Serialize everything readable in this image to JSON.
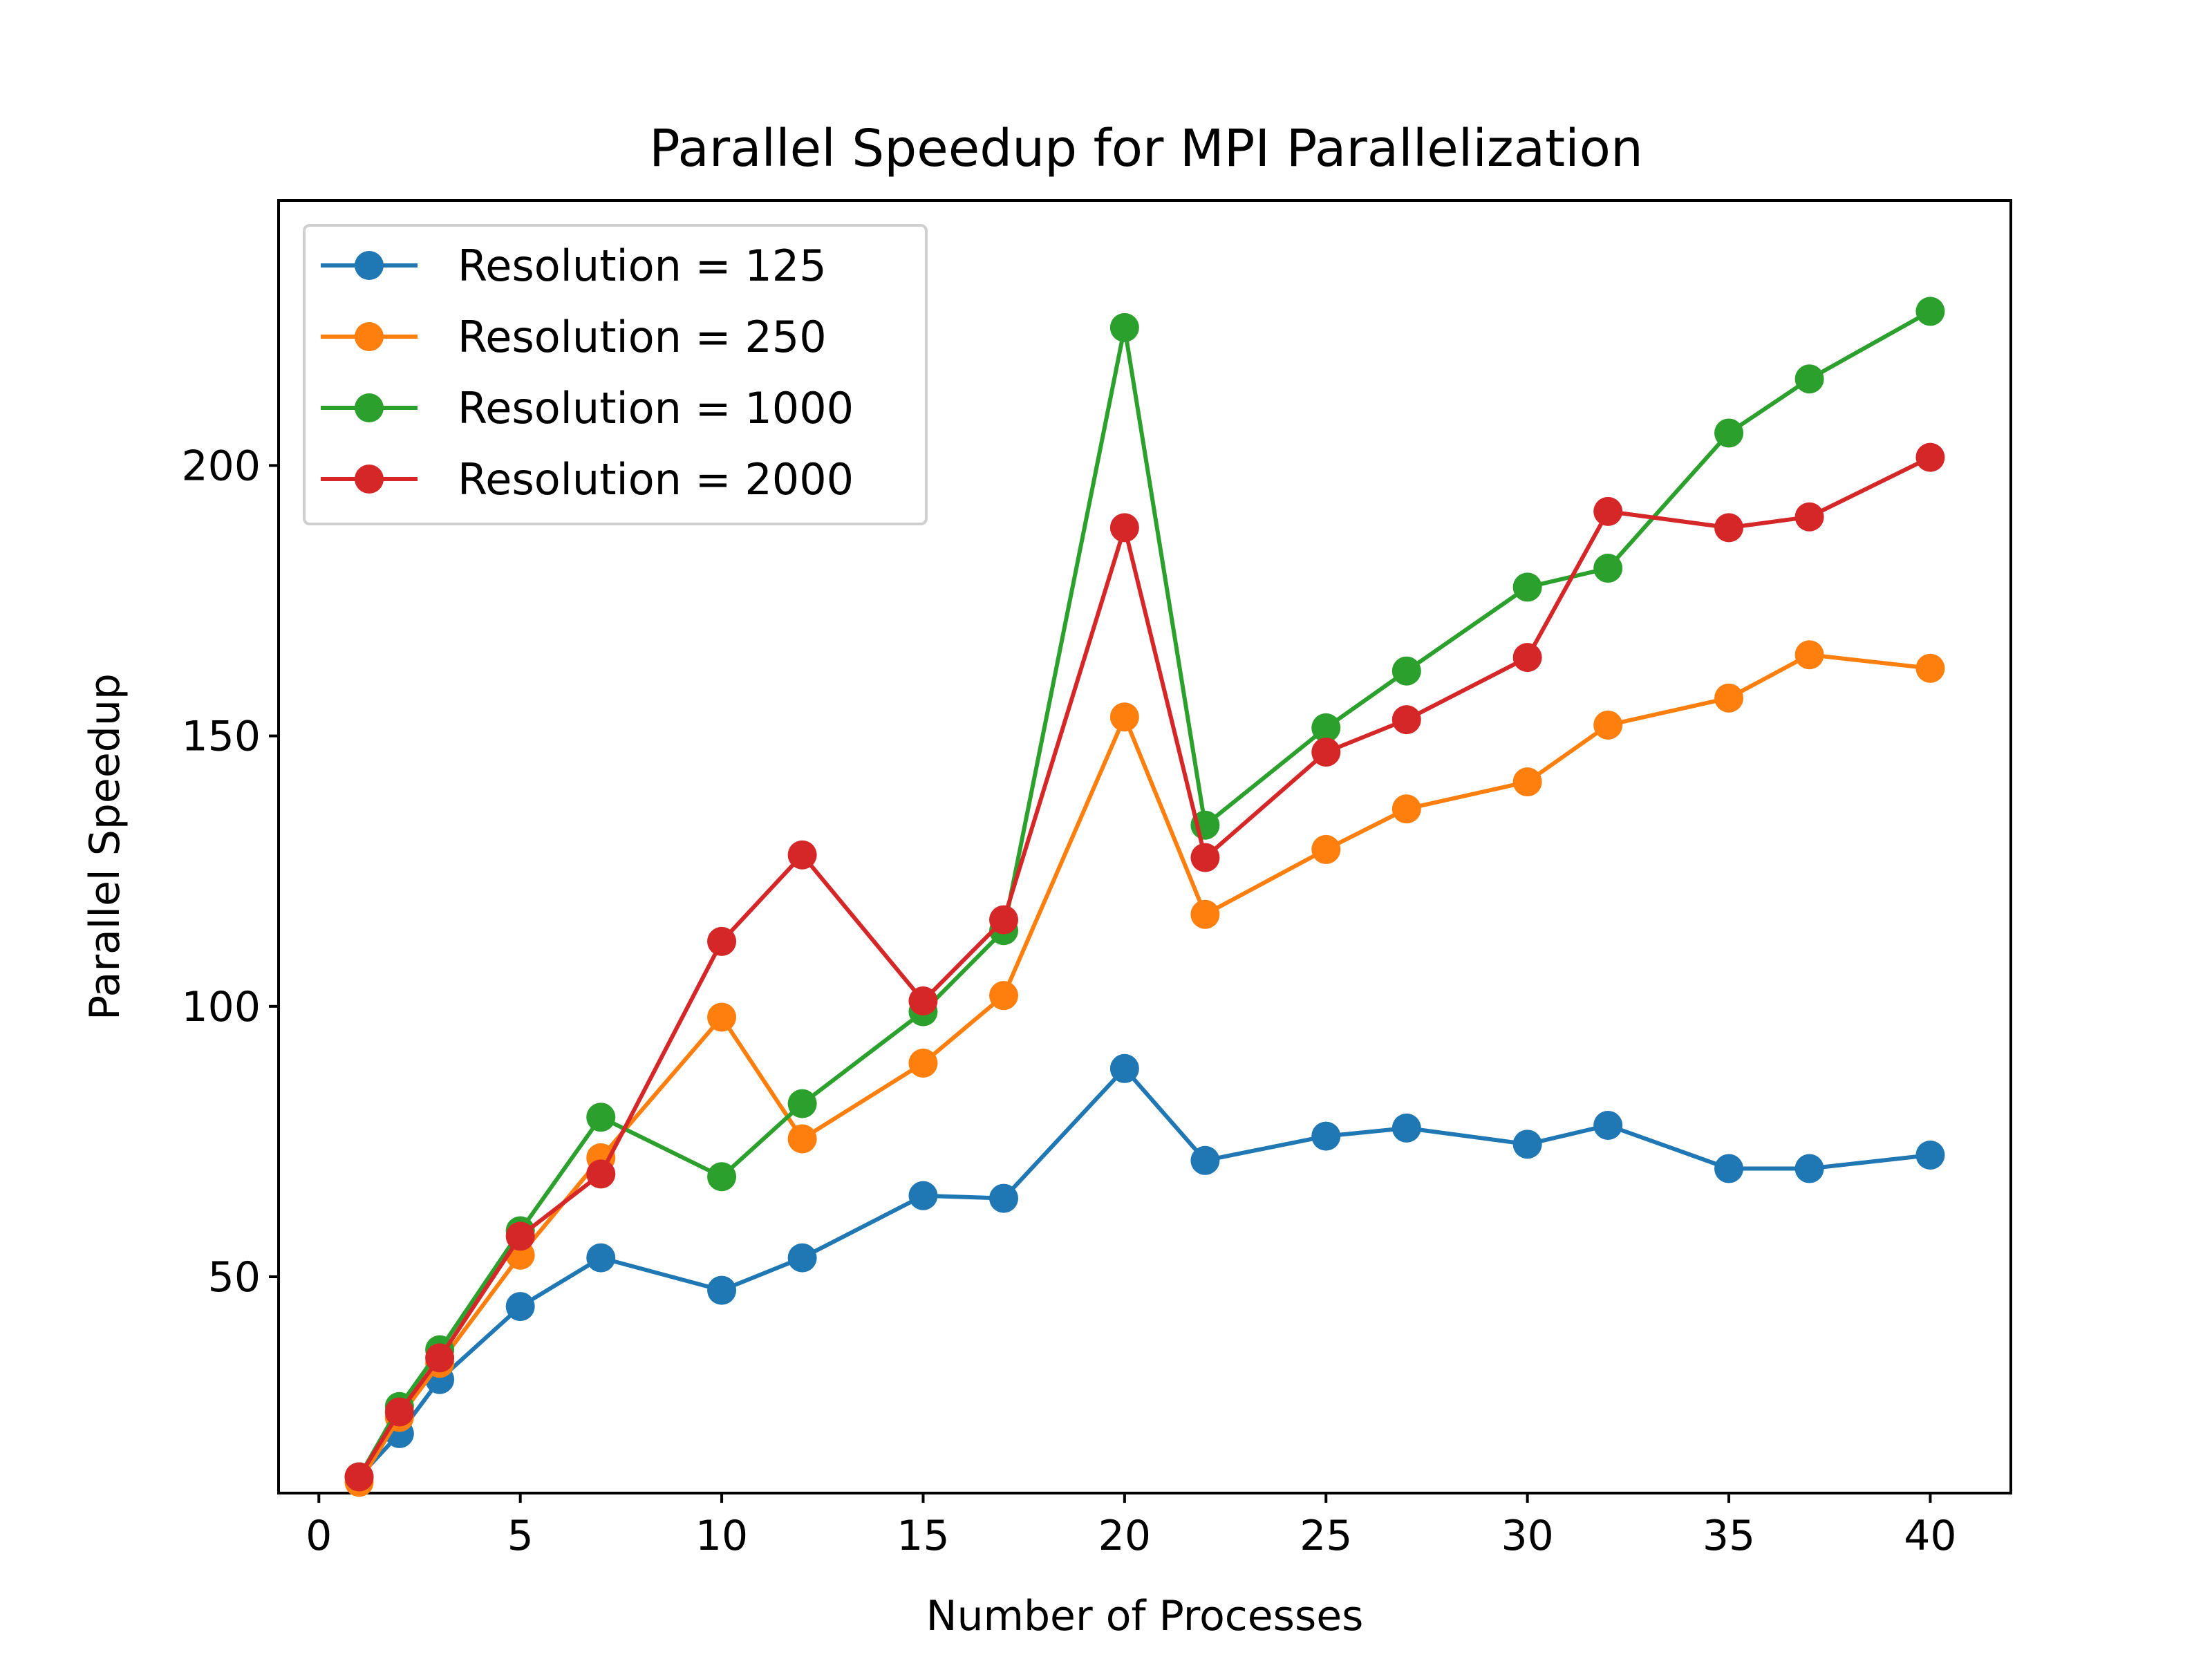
{
  "chart_data": {
    "type": "line",
    "title": "Parallel Speedup for MPI Parallelization",
    "xlabel": "Number of Processes",
    "ylabel": "Parallel Speedup",
    "xlim": [
      -1,
      42
    ],
    "ylim": [
      10,
      249
    ],
    "xticks": [
      0,
      5,
      10,
      15,
      20,
      25,
      30,
      35,
      40
    ],
    "yticks": [
      50,
      100,
      150,
      200
    ],
    "grid": false,
    "legend_position": "upper left",
    "x": [
      1,
      2,
      3,
      5,
      7,
      10,
      12,
      15,
      17,
      20,
      22,
      25,
      27,
      30,
      32,
      35,
      37,
      40
    ],
    "series": [
      {
        "name": "Resolution = 125",
        "color": "#1f77b4",
        "values": [
          13,
          21,
          31,
          44.5,
          53.5,
          47.5,
          53.5,
          65,
          64.5,
          88.5,
          71.5,
          76,
          77.5,
          74.5,
          78,
          70,
          70,
          72.5
        ]
      },
      {
        "name": "Resolution = 250",
        "color": "#ff7f0e",
        "values": [
          12,
          24,
          34,
          54,
          72,
          98,
          75.5,
          89.5,
          102,
          153.5,
          117,
          129,
          136.5,
          141.5,
          152,
          157,
          165,
          162.5
        ]
      },
      {
        "name": "Resolution = 1000",
        "color": "#2ca02c",
        "values": [
          13,
          26,
          36.5,
          58.5,
          79.5,
          68.5,
          82,
          99,
          114,
          225.5,
          133.5,
          151.5,
          162,
          177.5,
          181,
          206,
          216,
          228.5
        ]
      },
      {
        "name": "Resolution = 2000",
        "color": "#d62728",
        "values": [
          13,
          25,
          35,
          57.5,
          69,
          112,
          128,
          101,
          116,
          188.5,
          127.5,
          147,
          153,
          164.5,
          191.5,
          188.5,
          190.5,
          201.5
        ]
      }
    ]
  }
}
